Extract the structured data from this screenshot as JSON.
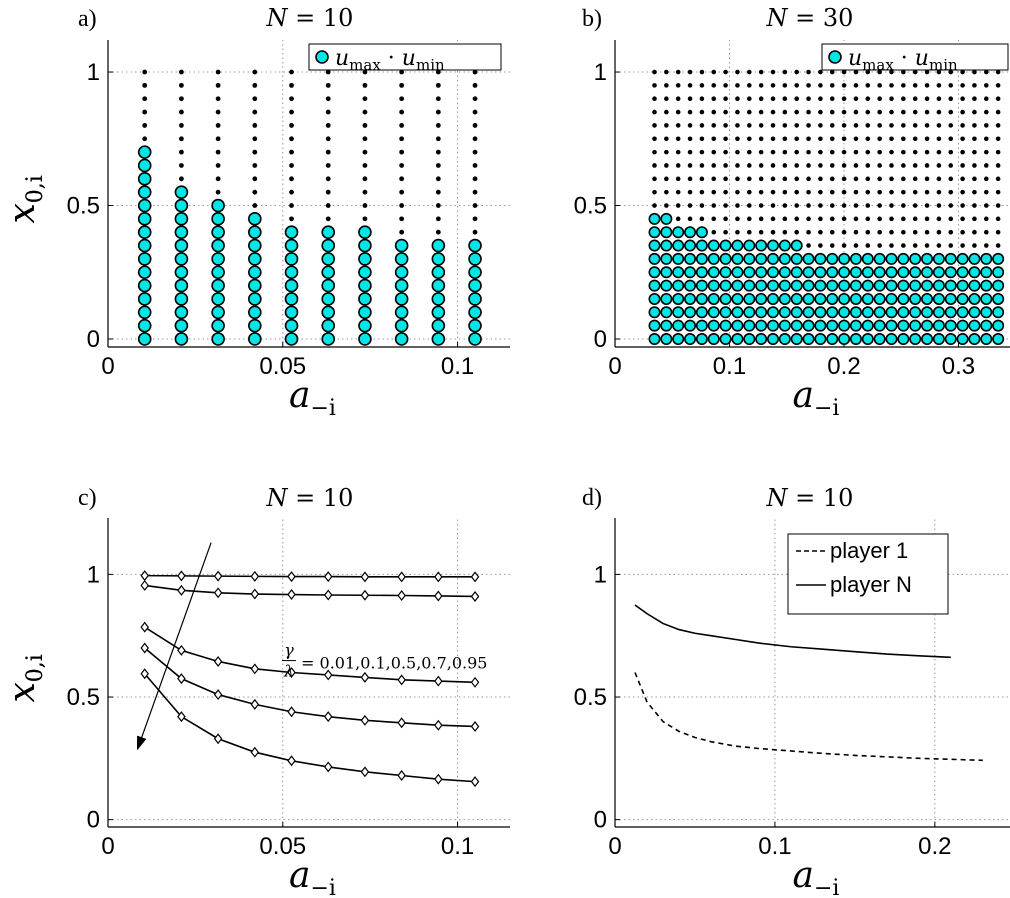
{
  "chart_data": [
    {
      "id": "a",
      "type": "scatter",
      "panel_label": "a)",
      "title_var": "N",
      "title_val": "= 10",
      "xlabel_main": "a",
      "xlabel_sub": "−i",
      "ylabel_main": "x",
      "ylabel_sub": "0,i",
      "xlim": [
        0,
        0.115
      ],
      "ylim": [
        -0.03,
        1.12
      ],
      "xticks": [
        0,
        0.05,
        0.1
      ],
      "xtick_labels": [
        "0",
        "0.05",
        "0.1"
      ],
      "yticks": [
        0,
        0.5,
        1
      ],
      "ytick_labels": [
        "0",
        "0.5",
        "1"
      ],
      "grid": true,
      "legend": {
        "placement": "top-right",
        "label_a": "u",
        "sub_a": "max",
        "sep": "·",
        "label_b": "u",
        "sub_b": "min"
      },
      "grid_x": [
        0.0105,
        0.021,
        0.0315,
        0.042,
        0.0525,
        0.063,
        0.0735,
        0.084,
        0.0945,
        0.105
      ],
      "grid_y_step": 0.05,
      "grid_y_max": 1.0,
      "umax_upper": [
        0.7,
        0.55,
        0.5,
        0.45,
        0.4,
        0.4,
        0.4,
        0.35,
        0.35,
        0.35
      ],
      "colors": {
        "marker_fill": "#00e5e5",
        "marker_edge": "#000000",
        "dot": "#000000"
      }
    },
    {
      "id": "b",
      "type": "scatter",
      "panel_label": "b)",
      "title_var": "N",
      "title_val": "= 30",
      "xlabel_main": "a",
      "xlabel_sub": "−i",
      "ylabel_main": "x",
      "ylabel_sub": "0,i",
      "xlim": [
        0,
        0.345
      ],
      "ylim": [
        -0.03,
        1.12
      ],
      "xticks": [
        0,
        0.1,
        0.2,
        0.3
      ],
      "xtick_labels": [
        "0",
        "0.1",
        "0.2",
        "0.3"
      ],
      "yticks": [
        0,
        0.5,
        1
      ],
      "ytick_labels": [
        "0",
        "0.5",
        "1"
      ],
      "grid": true,
      "legend": {
        "placement": "top-right",
        "label_a": "u",
        "sub_a": "max",
        "sep": "·",
        "label_b": "u",
        "sub_b": "min"
      },
      "grid_x_start": 0.0345,
      "grid_x_step": 0.01035,
      "grid_x_count": 30,
      "grid_y_step": 0.05,
      "grid_y_max": 1.0,
      "umax_upper_rule": [
        {
          "from_index": 0,
          "to_index": 1,
          "upper": 0.45
        },
        {
          "from_index": 2,
          "to_index": 4,
          "upper": 0.4
        },
        {
          "from_index": 5,
          "to_index": 12,
          "upper": 0.35
        },
        {
          "from_index": 13,
          "to_index": 29,
          "upper": 0.3
        }
      ],
      "colors": {
        "marker_fill": "#00e5e5",
        "marker_edge": "#000000",
        "dot": "#000000"
      }
    },
    {
      "id": "c",
      "type": "line",
      "panel_label": "c)",
      "title_var": "N",
      "title_val": "= 10",
      "xlabel_main": "a",
      "xlabel_sub": "−i",
      "ylabel_main": "x",
      "ylabel_sub": "0,i",
      "xlim": [
        0,
        0.115
      ],
      "ylim": [
        -0.03,
        1.23
      ],
      "xticks": [
        0,
        0.05,
        0.1
      ],
      "xtick_labels": [
        "0",
        "0.05",
        "0.1"
      ],
      "yticks": [
        0,
        0.5,
        1
      ],
      "ytick_labels": [
        "0",
        "0.5",
        "1"
      ],
      "grid": true,
      "x": [
        0.0105,
        0.021,
        0.0315,
        0.042,
        0.0525,
        0.063,
        0.0735,
        0.084,
        0.0945,
        0.105
      ],
      "series": [
        {
          "values": [
            0.995,
            0.994,
            0.993,
            0.992,
            0.991,
            0.991,
            0.99,
            0.99,
            0.99,
            0.99
          ]
        },
        {
          "values": [
            0.955,
            0.935,
            0.925,
            0.92,
            0.918,
            0.916,
            0.915,
            0.914,
            0.912,
            0.91
          ]
        },
        {
          "values": [
            0.785,
            0.69,
            0.645,
            0.615,
            0.6,
            0.59,
            0.58,
            0.57,
            0.565,
            0.56
          ]
        },
        {
          "values": [
            0.7,
            0.575,
            0.51,
            0.47,
            0.44,
            0.42,
            0.405,
            0.395,
            0.385,
            0.38
          ]
        },
        {
          "values": [
            0.595,
            0.42,
            0.33,
            0.275,
            0.24,
            0.215,
            0.195,
            0.18,
            0.165,
            0.155
          ]
        }
      ],
      "annotation": {
        "frac_num": "γ",
        "frac_den": "λ",
        "text": "= 0.01,0.1,0.5,0.7,0.95",
        "anchor": [
          0.0495,
          0.62
        ],
        "arrow_from": [
          0.0295,
          1.13
        ],
        "arrow_to": [
          0.0085,
          0.29
        ]
      },
      "colors": {
        "line": "#000000",
        "marker_fill": "#ffffff"
      }
    },
    {
      "id": "d",
      "type": "line",
      "panel_label": "d)",
      "title_var": "N",
      "title_val": "= 10",
      "xlabel_main": "a",
      "xlabel_sub": "−i",
      "ylabel_main": "x",
      "ylabel_sub": "0,i",
      "xlim": [
        0,
        0.247
      ],
      "ylim": [
        -0.03,
        1.23
      ],
      "xticks": [
        0,
        0.1,
        0.2
      ],
      "xtick_labels": [
        "0",
        "0.1",
        "0.2"
      ],
      "yticks": [
        0,
        0.5,
        1
      ],
      "ytick_labels": [
        "0",
        "0.5",
        "1"
      ],
      "grid": true,
      "legend": {
        "placement": "top-right",
        "entries": [
          "player 1",
          "player N"
        ]
      },
      "series": [
        {
          "name": "player 1",
          "style": "dashed",
          "x": [
            0.0125,
            0.02,
            0.03,
            0.04,
            0.05,
            0.06,
            0.075,
            0.09,
            0.11,
            0.13,
            0.15,
            0.17,
            0.19,
            0.21,
            0.23
          ],
          "values": [
            0.6,
            0.48,
            0.4,
            0.36,
            0.335,
            0.318,
            0.3,
            0.29,
            0.28,
            0.27,
            0.262,
            0.256,
            0.25,
            0.246,
            0.242
          ]
        },
        {
          "name": "player N",
          "style": "solid",
          "x": [
            0.0125,
            0.02,
            0.03,
            0.04,
            0.05,
            0.06,
            0.075,
            0.09,
            0.11,
            0.13,
            0.15,
            0.17,
            0.19,
            0.21
          ],
          "values": [
            0.875,
            0.84,
            0.8,
            0.775,
            0.76,
            0.75,
            0.735,
            0.72,
            0.705,
            0.695,
            0.685,
            0.675,
            0.668,
            0.662
          ]
        }
      ],
      "colors": {
        "line": "#000000"
      }
    }
  ]
}
